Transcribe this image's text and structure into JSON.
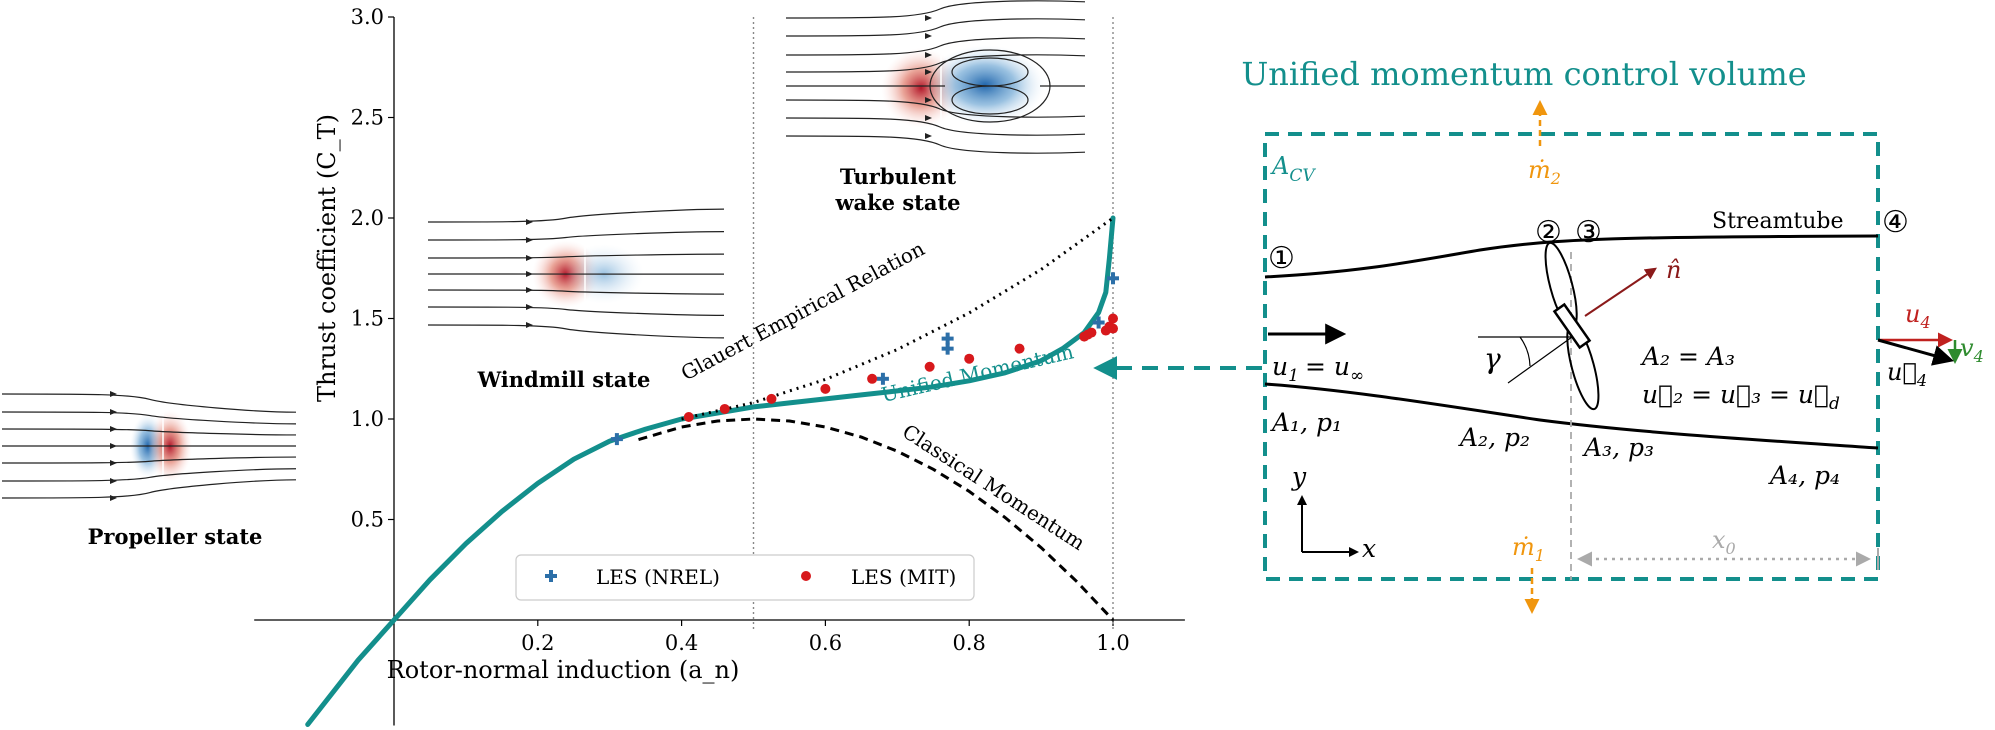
{
  "chart_data": {
    "type": "line",
    "ylabel": "Thrust coefficient (C_T)",
    "xlabel": "Rotor-normal induction (a_n)",
    "xlim": [
      -0.2,
      1.1
    ],
    "ylim": [
      -0.5,
      3.0
    ],
    "xticks": [
      "0.2",
      "0.4",
      "0.6",
      "0.8",
      "1.0"
    ],
    "xtick_values": [
      0.2,
      0.4,
      0.6,
      0.8,
      1.0
    ],
    "yticks": [
      "0.5",
      "1.0",
      "1.5",
      "2.0",
      "2.5",
      "3.0"
    ],
    "ytick_values": [
      0.5,
      1.0,
      1.5,
      2.0,
      2.5,
      3.0
    ],
    "vlines": [
      0.5,
      1.0
    ],
    "series": [
      {
        "name": "Unified Momentum",
        "style": "solid",
        "color": "#138f8c",
        "x": [
          -0.12,
          -0.05,
          0.0,
          0.05,
          0.1,
          0.15,
          0.2,
          0.25,
          0.3,
          0.35,
          0.4,
          0.45,
          0.5,
          0.55,
          0.6,
          0.65,
          0.7,
          0.75,
          0.8,
          0.85,
          0.9,
          0.93,
          0.96,
          0.98,
          0.99,
          0.995,
          1.0
        ],
        "y": [
          -0.52,
          -0.2,
          0.0,
          0.2,
          0.38,
          0.54,
          0.68,
          0.8,
          0.89,
          0.95,
          1.0,
          1.03,
          1.06,
          1.08,
          1.1,
          1.12,
          1.14,
          1.16,
          1.19,
          1.23,
          1.29,
          1.35,
          1.43,
          1.53,
          1.63,
          1.8,
          2.0
        ]
      },
      {
        "name": "Classical Momentum",
        "style": "dashed",
        "color": "#000000",
        "x": [
          0.34,
          0.4,
          0.45,
          0.5,
          0.55,
          0.6,
          0.65,
          0.7,
          0.75,
          0.8,
          0.85,
          0.9,
          0.95,
          1.0
        ],
        "y": [
          0.8976,
          0.96,
          0.99,
          1.0,
          0.99,
          0.96,
          0.91,
          0.84,
          0.75,
          0.64,
          0.51,
          0.36,
          0.19,
          0.0
        ]
      },
      {
        "name": "Glauert Empirical Relation",
        "style": "dotted",
        "color": "#000000",
        "x": [
          0.4,
          0.5,
          0.6,
          0.7,
          0.8,
          0.9,
          1.0
        ],
        "y": [
          1.0,
          1.0816,
          1.1968,
          1.3456,
          1.528,
          1.744,
          2.0
        ]
      }
    ],
    "scatter": [
      {
        "name": "LES (NREL)",
        "marker": "plus",
        "color": "#2c6fa8",
        "x": [
          0.31,
          0.68,
          0.77,
          0.77,
          0.98,
          1.0
        ],
        "y": [
          0.9,
          1.2,
          1.35,
          1.4,
          1.48,
          1.7
        ]
      },
      {
        "name": "LES (MIT)",
        "marker": "circle",
        "color": "#d7191c",
        "x": [
          0.41,
          0.46,
          0.525,
          0.6,
          0.665,
          0.745,
          0.8,
          0.87,
          0.96,
          0.965,
          0.97,
          0.99,
          0.995,
          1.0,
          1.0
        ],
        "y": [
          1.01,
          1.05,
          1.1,
          1.15,
          1.2,
          1.26,
          1.3,
          1.35,
          1.41,
          1.42,
          1.43,
          1.44,
          1.46,
          1.45,
          1.5
        ]
      }
    ],
    "curve_labels": [
      "Glauert Empirical Relation",
      "Unified Momentum",
      "Classical Momentum"
    ],
    "legend": {
      "position": "bottom-center",
      "entries": [
        "LES (NREL)",
        "LES (MIT)"
      ]
    },
    "insets": [
      "Propeller state",
      "Windmill state",
      "Turbulent wake state"
    ]
  },
  "diagram": {
    "title": "Unified momentum control volume",
    "acv": "A",
    "acv_sub": "CV",
    "stations": [
      "①",
      "②",
      "③",
      "④"
    ],
    "streamtube": "Streamtube",
    "n_hat": "n̂",
    "gamma": "γ",
    "u1": "u",
    "u1_sub": "1",
    "u1_rest": "= u",
    "u1_inf": "∞",
    "a1p1": "A₁,  p₁",
    "a2p2": "A₂,  p₂",
    "a3p3": "A₃,  p₃",
    "a4p4": "A₄,  p₄",
    "a2a3": "A₂ = A₃",
    "u2u3": "u⃗₂ = u⃗₃ = u⃗",
    "u2u3_sub": "d",
    "mdot2": "ṁ",
    "mdot2_sub": "2",
    "mdot1": "ṁ",
    "mdot1_sub": "1",
    "x0": "x",
    "x0_sub": "0",
    "u4_red": "u",
    "u4_red_sub": "4",
    "v4": "v",
    "v4_sub": "4",
    "u4_vec": "u⃗",
    "u4_vec_sub": "4",
    "axis_x": "x",
    "axis_y": "y",
    "colors": {
      "teal": "#138f8c",
      "orange": "#f0960e",
      "red": "#c0211f",
      "green": "#2e8b2e",
      "darkred": "#8b1a1a",
      "gray": "#aaaaaa"
    }
  }
}
